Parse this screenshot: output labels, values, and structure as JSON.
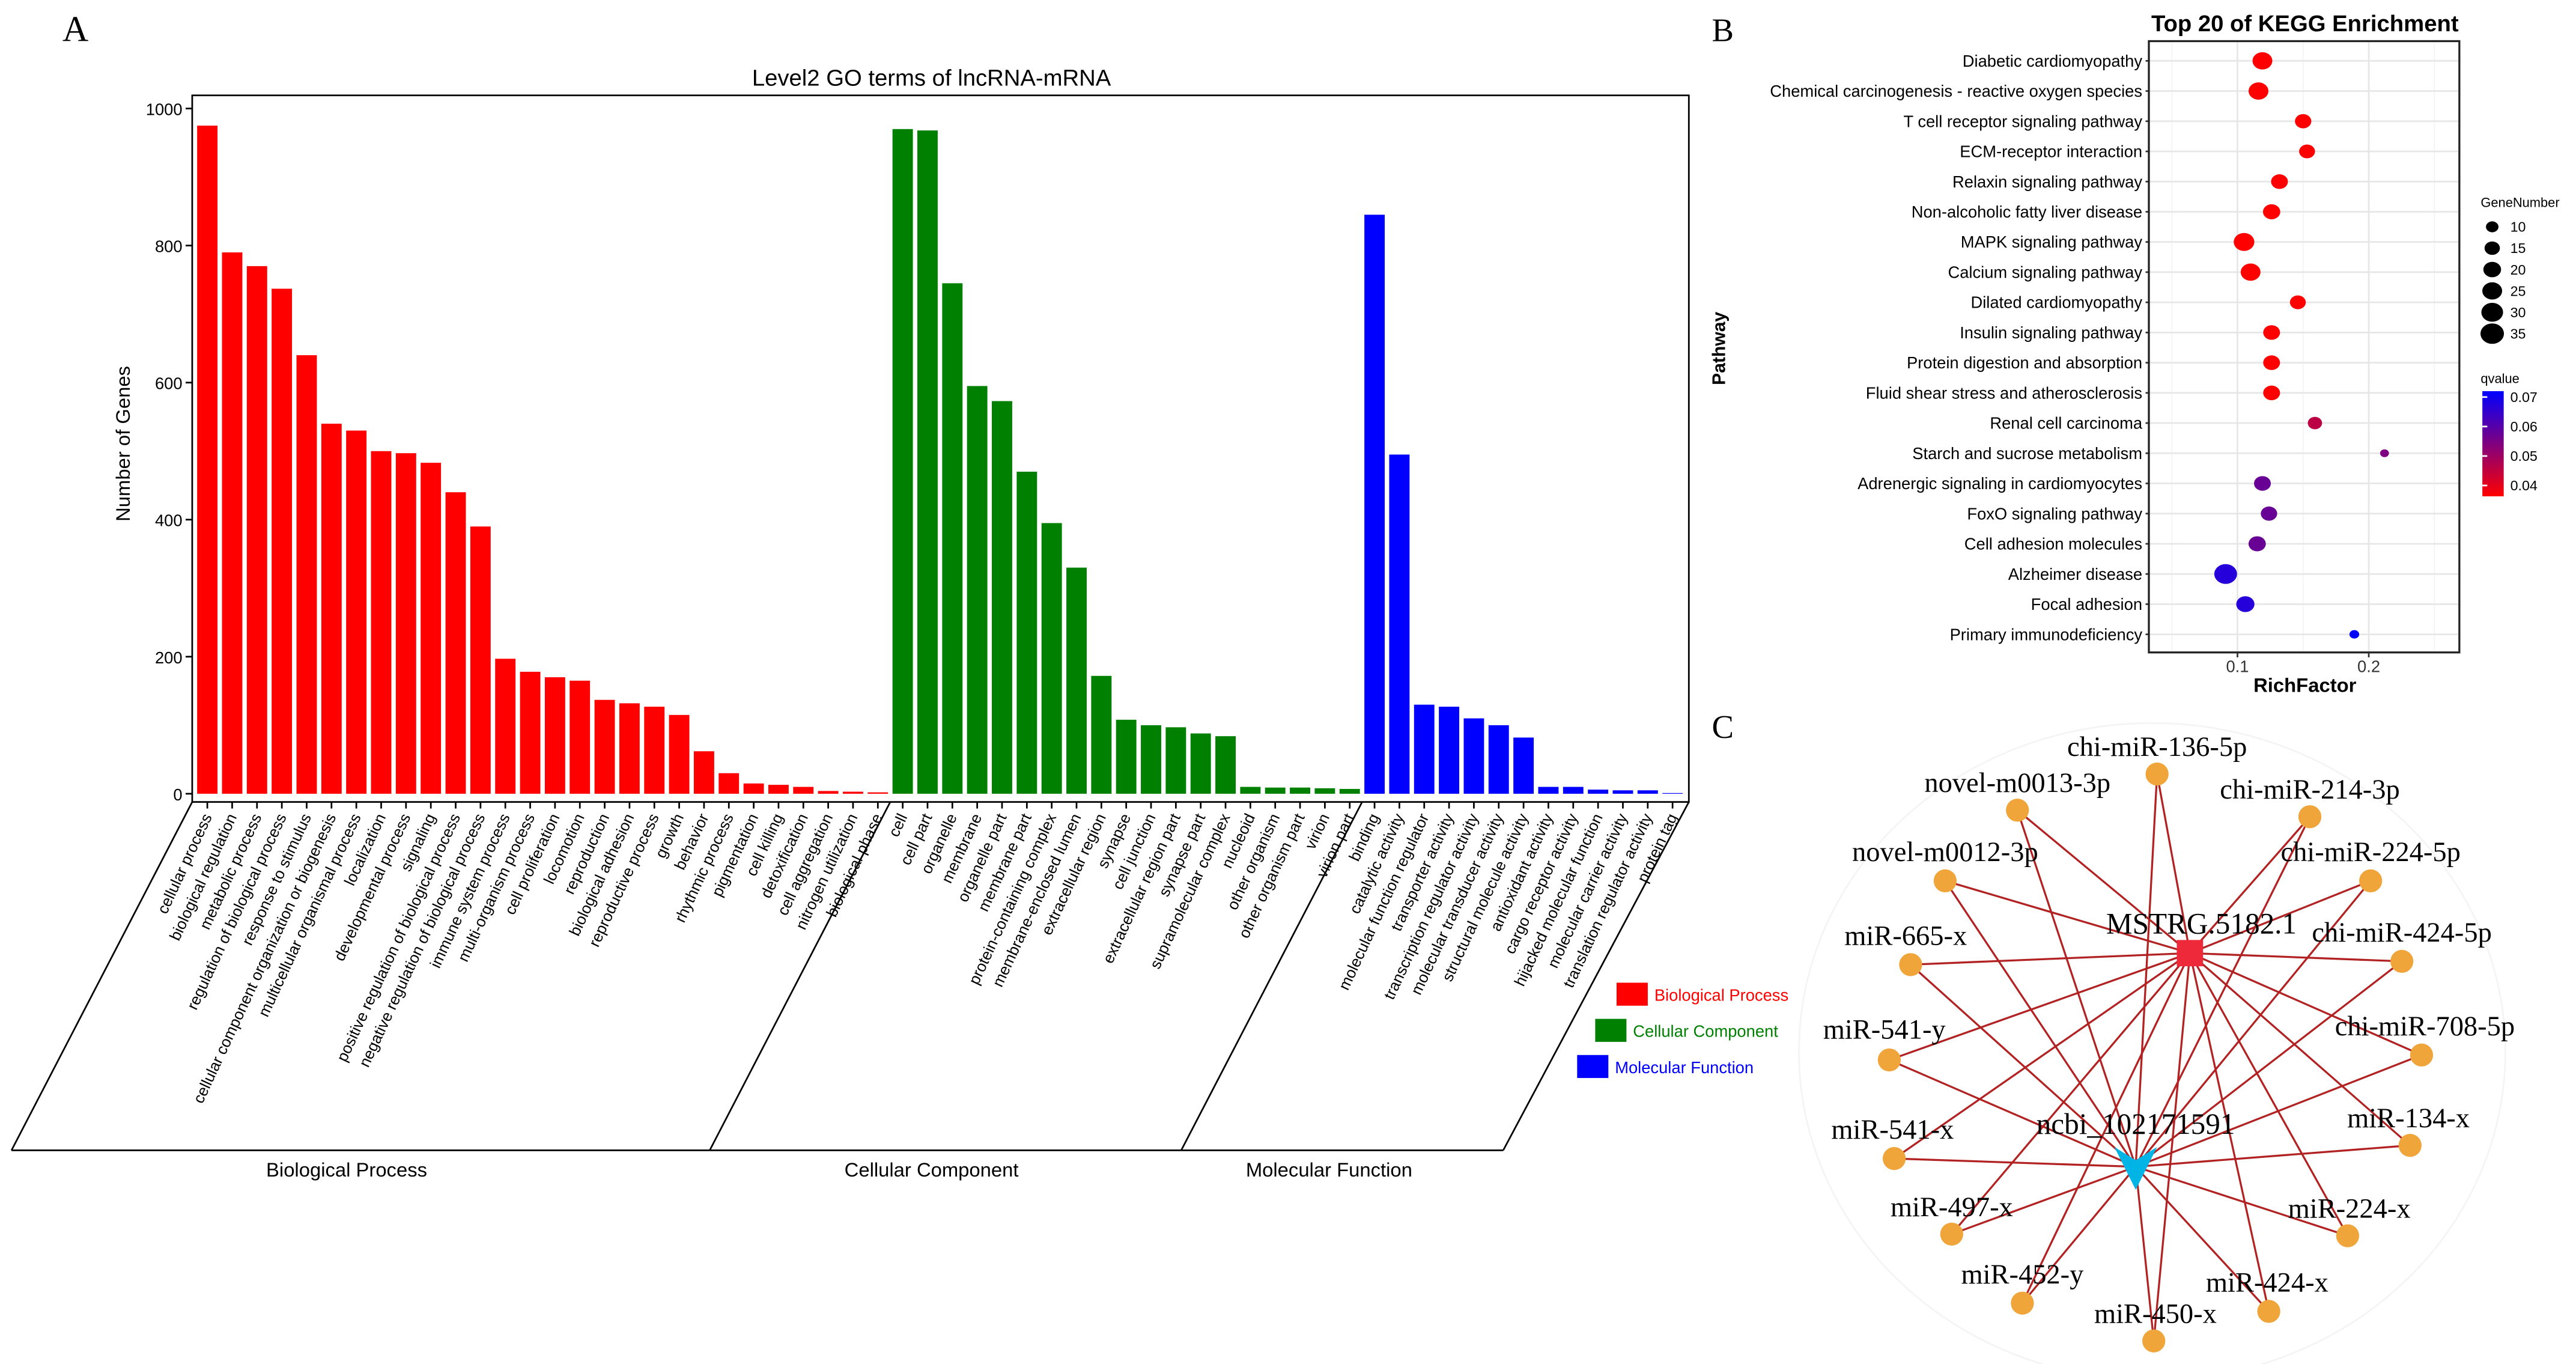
{
  "panel_letters": {
    "a": "A",
    "b": "B",
    "c": "C"
  },
  "chart_data": [
    {
      "type": "bar",
      "title": "Level2 GO terms of lncRNA-mRNA",
      "ylabel": "Number of Genes",
      "xlabel": "",
      "ylim": [
        0,
        1000
      ],
      "yticks": [
        0,
        200,
        400,
        600,
        800,
        1000
      ],
      "grid": false,
      "legend_position": "bottom-right",
      "colors": {
        "Biological Process": "#ff0000",
        "Cellular Component": "#008000",
        "Molecular Function": "#0000ff"
      },
      "groups": [
        {
          "name": "Biological Process",
          "categories": [
            "cellular process",
            "biological regulation",
            "metabolic process",
            "regulation of biological process",
            "response to stimulus",
            "cellular component organization or biogenesis",
            "multicellular organismal process",
            "localization",
            "developmental process",
            "signaling",
            "positive regulation of biological process",
            "negative regulation of biological process",
            "immune system process",
            "multi-organism process",
            "cell proliferation",
            "locomotion",
            "reproduction",
            "biological adhesion",
            "reproductive process",
            "growth",
            "behavior",
            "rhythmic process",
            "pigmentation",
            "cell killing",
            "detoxification",
            "cell aggregation",
            "nitrogen utilization",
            "biological phase"
          ],
          "values": [
            975,
            790,
            770,
            737,
            640,
            540,
            530,
            500,
            497,
            483,
            440,
            390,
            197,
            178,
            170,
            165,
            137,
            132,
            127,
            115,
            62,
            30,
            15,
            13,
            10,
            4,
            3,
            2
          ]
        },
        {
          "name": "Cellular Component",
          "categories": [
            "cell",
            "cell part",
            "organelle",
            "membrane",
            "organelle part",
            "membrane part",
            "protein-containing complex",
            "membrane-enclosed lumen",
            "extracellular region",
            "synapse",
            "cell junction",
            "extracellular region part",
            "synapse part",
            "supramolecular complex",
            "nucleoid",
            "other organism",
            "other organism part",
            "virion",
            "virion part"
          ],
          "values": [
            970,
            968,
            745,
            595,
            573,
            470,
            395,
            330,
            172,
            108,
            100,
            97,
            88,
            84,
            10,
            9,
            9,
            8,
            7
          ]
        },
        {
          "name": "Molecular Function",
          "categories": [
            "binding",
            "catalytic activity",
            "molecular function regulator",
            "transporter activity",
            "transcription regulator activity",
            "molecular transducer activity",
            "structural molecule activity",
            "antioxidant activity",
            "cargo receptor activity",
            "hijacked molecular function",
            "molecular carrier activity",
            "translation regulator activity",
            "protein tag"
          ],
          "values": [
            845,
            495,
            130,
            127,
            110,
            100,
            82,
            10,
            10,
            6,
            5,
            5,
            1
          ]
        }
      ]
    },
    {
      "type": "scatter",
      "title": "Top 20 of KEGG Enrichment",
      "xlabel": "RichFactor",
      "ylabel": "Pathway",
      "xlim": [
        0.0325,
        0.269
      ],
      "xticks": [
        0.1,
        0.2
      ],
      "xtick_labels": [
        "0.1",
        "0.2"
      ],
      "grid": true,
      "legend_position": "right",
      "size_legend": {
        "title": "GeneNumber",
        "values": [
          10,
          15,
          20,
          25,
          30,
          35
        ],
        "labels": [
          "10",
          "15",
          "20",
          "25",
          "30",
          "35"
        ]
      },
      "color_legend": {
        "title": "qvalue",
        "range": [
          0.038,
          0.072
        ],
        "ticks": [
          0.07,
          0.06,
          0.05,
          0.04
        ],
        "labels": [
          "0.07",
          "0.06",
          "0.05",
          "0.04"
        ],
        "low_color": "#ff0000",
        "high_color": "#0000ff"
      },
      "pathways": [
        "Diabetic cardiomyopathy",
        "Chemical carcinogenesis - reactive oxygen species",
        "T cell receptor signaling pathway",
        "ECM-receptor interaction",
        "Relaxin signaling pathway",
        "Non-alcoholic fatty liver disease",
        "MAPK signaling pathway",
        "Calcium signaling pathway",
        "Dilated cardiomyopathy",
        "Insulin signaling pathway",
        "Protein digestion and absorption",
        "Fluid shear stress and atherosclerosis",
        "Renal cell carcinoma",
        "Starch and sucrose metabolism",
        "Adrenergic signaling in cardiomyocytes",
        "FoxO signaling pathway",
        "Cell adhesion molecules",
        "Alzheimer disease",
        "Focal adhesion",
        "Primary immunodeficiency"
      ],
      "rich_factor": [
        0.119,
        0.116,
        0.15,
        0.153,
        0.132,
        0.126,
        0.105,
        0.11,
        0.146,
        0.126,
        0.126,
        0.126,
        0.159,
        0.212,
        0.119,
        0.124,
        0.115,
        0.091,
        0.106,
        0.189
      ],
      "gene_number": [
        25,
        25,
        17,
        16,
        18,
        19,
        27,
        25,
        16,
        18,
        18,
        18,
        13,
        5,
        18,
        17,
        19,
        33,
        21,
        6
      ],
      "qvalue": [
        0.038,
        0.038,
        0.038,
        0.038,
        0.038,
        0.038,
        0.038,
        0.038,
        0.038,
        0.038,
        0.038,
        0.038,
        0.047,
        0.055,
        0.058,
        0.058,
        0.058,
        0.067,
        0.067,
        0.072
      ]
    }
  ],
  "network": {
    "hubs": [
      {
        "id": "MSTRG.5182.1",
        "shape": "square",
        "color": "#ee2a3a"
      },
      {
        "id": "ncbi_102171591",
        "shape": "v-arrow",
        "color": "#00b4e6"
      }
    ],
    "node_color": "#f0a53a",
    "edge_color": "#b22222",
    "mirnas": [
      "chi-miR-136-5p",
      "novel-m0013-3p",
      "chi-miR-214-3p",
      "novel-m0012-3p",
      "chi-miR-224-5p",
      "miR-665-x",
      "chi-miR-424-5p",
      "miR-541-y",
      "chi-miR-708-5p",
      "miR-541-x",
      "miR-134-x",
      "miR-497-x",
      "miR-224-x",
      "miR-452-y",
      "miR-424-x",
      "miR-450-x"
    ]
  }
}
